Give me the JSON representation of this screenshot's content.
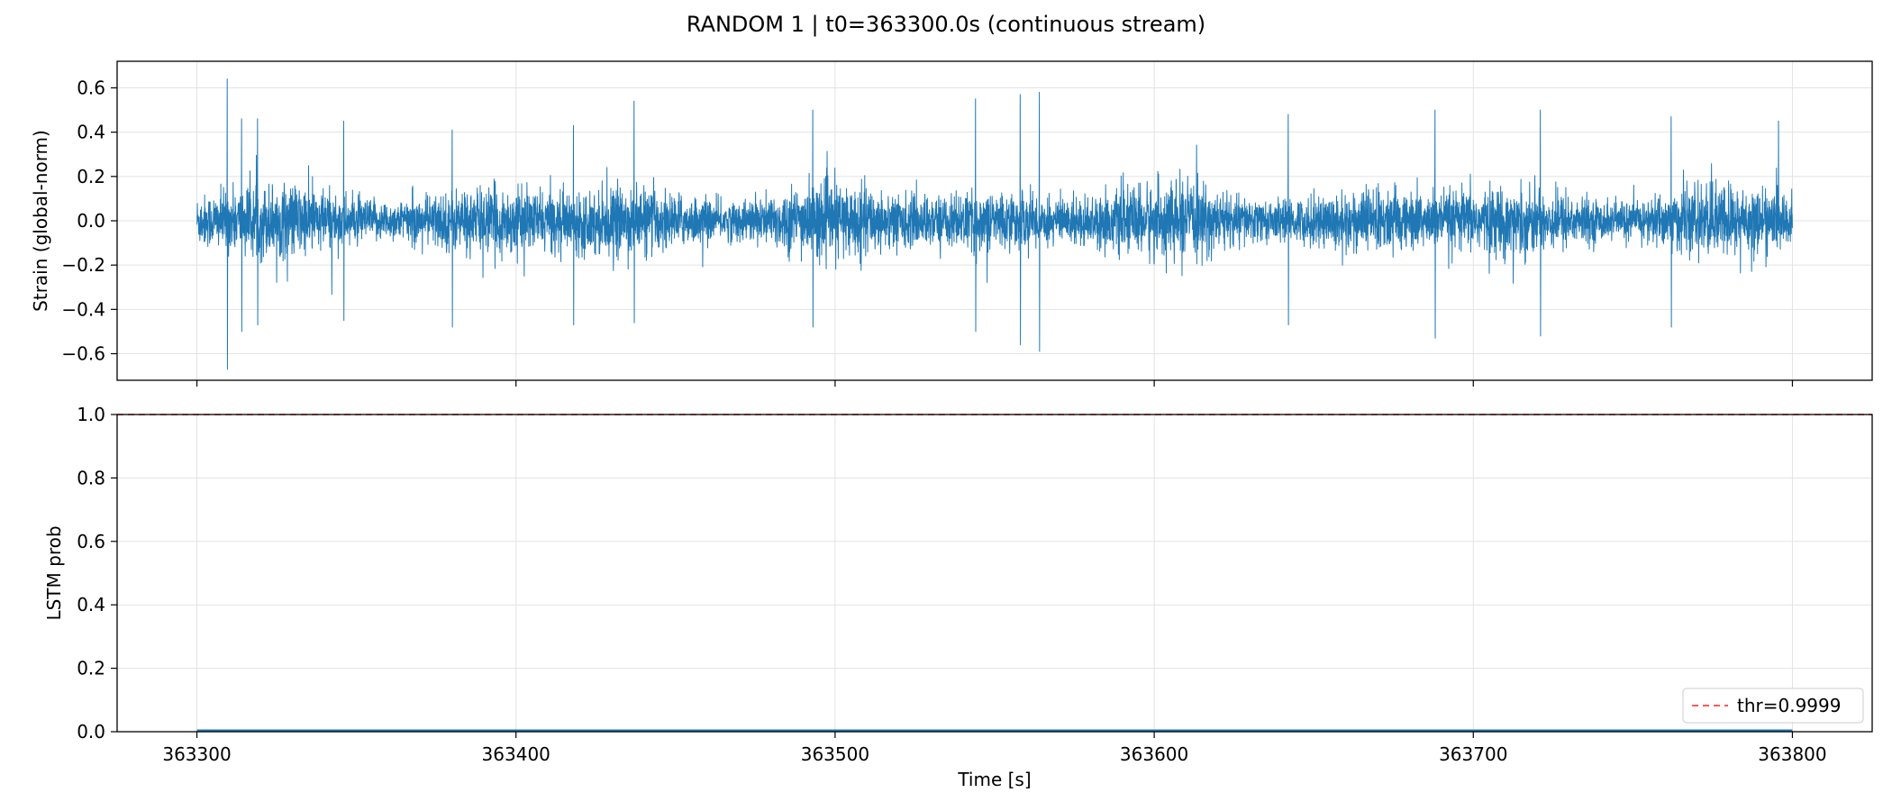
{
  "figure": {
    "title": "RANDOM 1 | t0=363300.0s (continuous stream)"
  },
  "chart_data": [
    {
      "type": "line",
      "panel": "top",
      "xlabel": "",
      "ylabel": "Strain (global-norm)",
      "xlim": [
        363275,
        363825
      ],
      "ylim": [
        -0.72,
        0.72
      ],
      "yticks": [
        -0.6,
        -0.4,
        -0.2,
        0.0,
        0.2,
        0.4,
        0.6
      ],
      "ytick_labels": [
        "−0.6",
        "−0.4",
        "−0.2",
        "0.0",
        "0.2",
        "0.4",
        "0.6"
      ],
      "xticks": [
        363300,
        363400,
        363500,
        363600,
        363700,
        363800
      ],
      "grid": true,
      "series": [
        {
          "color": "#1f77b4",
          "x_range": [
            363300,
            363800
          ],
          "envelope_peaks": [
            {
              "x": 363309.5,
              "max": 0.64,
              "min": -0.67
            },
            {
              "x": 363314,
              "max": 0.46,
              "min": -0.5
            },
            {
              "x": 363319,
              "max": 0.46,
              "min": -0.47
            },
            {
              "x": 363346,
              "max": 0.45,
              "min": -0.45
            },
            {
              "x": 363380,
              "max": 0.41,
              "min": -0.48
            },
            {
              "x": 363418,
              "max": 0.43,
              "min": -0.47
            },
            {
              "x": 363437,
              "max": 0.54,
              "min": -0.46
            },
            {
              "x": 363493,
              "max": 0.5,
              "min": -0.48
            },
            {
              "x": 363544,
              "max": 0.55,
              "min": -0.5
            },
            {
              "x": 363558,
              "max": 0.57,
              "min": -0.56
            },
            {
              "x": 363564,
              "max": 0.58,
              "min": -0.59
            },
            {
              "x": 363642,
              "max": 0.48,
              "min": -0.47
            },
            {
              "x": 363688,
              "max": 0.5,
              "min": -0.53
            },
            {
              "x": 363721,
              "max": 0.5,
              "min": -0.52
            },
            {
              "x": 363762,
              "max": 0.47,
              "min": -0.48
            }
          ],
          "typical_amplitude": 0.2
        }
      ]
    },
    {
      "type": "line",
      "panel": "bottom",
      "xlabel": "Time [s]",
      "ylabel": "LSTM prob",
      "xlim": [
        363275,
        363825
      ],
      "ylim": [
        0.0,
        1.0
      ],
      "yticks": [
        0.0,
        0.2,
        0.4,
        0.6,
        0.8,
        1.0
      ],
      "ytick_labels": [
        "0.0",
        "0.2",
        "0.4",
        "0.6",
        "0.8",
        "1.0"
      ],
      "xticks": [
        363300,
        363400,
        363500,
        363600,
        363700,
        363800
      ],
      "xtick_labels": [
        "363300",
        "363400",
        "363500",
        "363600",
        "363700",
        "363800"
      ],
      "grid": true,
      "series": [
        {
          "color": "#1f77b4",
          "x": [
            363300,
            363400,
            363500,
            363600,
            363700,
            363800
          ],
          "y": [
            0.003,
            0.003,
            0.003,
            0.003,
            0.003,
            0.003
          ]
        }
      ],
      "threshold": {
        "value": 0.9999,
        "label": "thr=0.9999",
        "color": "#ff0000",
        "style": "dashed"
      },
      "legend": {
        "placement": "lower-right",
        "entries": [
          "thr=0.9999"
        ]
      }
    }
  ]
}
